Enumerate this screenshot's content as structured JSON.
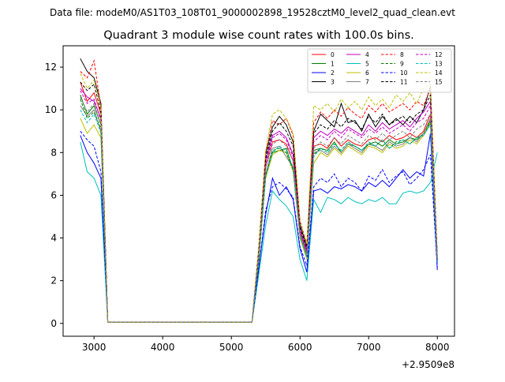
{
  "figure": {
    "suptitle": "Data file: modeM0/AS1T03_108T01_9000002898_19528cztM0_level2_quad_clean.evt"
  },
  "chart_data": {
    "type": "line",
    "title": "Quadrant 3 module wise count rates with 100.0s bins.",
    "xlabel": "",
    "ylabel": "",
    "x_offset_label": "+2.9509e8",
    "xlim": [
      2550,
      8250
    ],
    "ylim": [
      -0.6,
      13.0
    ],
    "xticks": [
      3000,
      4000,
      5000,
      6000,
      7000,
      8000
    ],
    "yticks": [
      0,
      2,
      4,
      6,
      8,
      10,
      12
    ],
    "grid": false,
    "legend": {
      "placement": "top-right",
      "columns": 4
    },
    "x": [
      2800,
      2900,
      3000,
      3100,
      3200,
      3300,
      3400,
      3500,
      3600,
      3700,
      3800,
      3900,
      4000,
      4100,
      4200,
      4300,
      4400,
      4500,
      4600,
      4700,
      4800,
      4900,
      5000,
      5100,
      5200,
      5300,
      5400,
      5500,
      5600,
      5700,
      5800,
      5900,
      6000,
      6100,
      6200,
      6300,
      6400,
      6500,
      6600,
      6700,
      6800,
      6900,
      7000,
      7100,
      7200,
      7300,
      7400,
      7500,
      7600,
      7700,
      7800,
      7900,
      8000
    ],
    "series": [
      {
        "name": "0",
        "color": "#ff0000",
        "dash": false,
        "values": [
          11.3,
          10.4,
          10.8,
          9.8,
          0.05,
          0.05,
          0.05,
          0.05,
          0.05,
          0.05,
          0.05,
          0.05,
          0.05,
          0.05,
          0.05,
          0.05,
          0.05,
          0.05,
          0.05,
          0.05,
          0.05,
          0.05,
          0.05,
          0.05,
          0.05,
          0.05,
          3.2,
          7.3,
          8.5,
          8.6,
          8.4,
          7.6,
          4.3,
          3.3,
          8.3,
          8.4,
          8.2,
          8.7,
          8.3,
          8.6,
          8.4,
          8.3,
          8.6,
          8.7,
          8.5,
          8.8,
          8.6,
          8.7,
          8.9,
          8.7,
          9.0,
          9.8,
          3.0
        ]
      },
      {
        "name": "1",
        "color": "#008000",
        "dash": false,
        "values": [
          10.7,
          9.8,
          10.2,
          9.3,
          0.05,
          0.05,
          0.05,
          0.05,
          0.05,
          0.05,
          0.05,
          0.05,
          0.05,
          0.05,
          0.05,
          0.05,
          0.05,
          0.05,
          0.05,
          0.05,
          0.05,
          0.05,
          0.05,
          0.05,
          0.05,
          0.05,
          3.0,
          6.9,
          8.0,
          8.1,
          8.2,
          7.2,
          4.1,
          3.1,
          8.1,
          8.2,
          8.1,
          8.5,
          8.0,
          8.4,
          8.3,
          8.1,
          8.4,
          8.5,
          8.3,
          8.6,
          8.4,
          8.5,
          8.7,
          8.6,
          8.9,
          9.5,
          2.9
        ]
      },
      {
        "name": "2",
        "color": "#0000ff",
        "dash": false,
        "values": [
          8.8,
          8.0,
          7.5,
          6.8,
          0.05,
          0.05,
          0.05,
          0.05,
          0.05,
          0.05,
          0.05,
          0.05,
          0.05,
          0.05,
          0.05,
          0.05,
          0.05,
          0.05,
          0.05,
          0.05,
          0.05,
          0.05,
          0.05,
          0.05,
          0.05,
          0.05,
          2.6,
          5.1,
          6.8,
          6.0,
          6.4,
          5.8,
          3.5,
          2.4,
          6.2,
          6.3,
          6.1,
          6.4,
          6.3,
          6.5,
          6.4,
          6.2,
          6.6,
          6.4,
          6.7,
          6.4,
          6.8,
          7.2,
          6.8,
          7.1,
          6.9,
          8.9,
          2.5
        ]
      },
      {
        "name": "3",
        "color": "#000000",
        "dash": false,
        "values": [
          12.4,
          11.8,
          11.5,
          10.3,
          0.05,
          0.05,
          0.05,
          0.05,
          0.05,
          0.05,
          0.05,
          0.05,
          0.05,
          0.05,
          0.05,
          0.05,
          0.05,
          0.05,
          0.05,
          0.05,
          0.05,
          0.05,
          0.05,
          0.05,
          0.05,
          0.05,
          3.5,
          7.9,
          9.2,
          9.7,
          9.3,
          8.5,
          4.6,
          3.6,
          9.0,
          9.8,
          9.5,
          9.2,
          10.3,
          9.4,
          9.5,
          9.0,
          9.8,
          9.2,
          9.7,
          9.3,
          9.6,
          9.3,
          9.7,
          9.4,
          10.0,
          11.1,
          3.1
        ]
      },
      {
        "name": "4",
        "color": "#c000c0",
        "dash": false,
        "values": [
          11.0,
          10.6,
          10.4,
          9.6,
          0.05,
          0.05,
          0.05,
          0.05,
          0.05,
          0.05,
          0.05,
          0.05,
          0.05,
          0.05,
          0.05,
          0.05,
          0.05,
          0.05,
          0.05,
          0.05,
          0.05,
          0.05,
          0.05,
          0.05,
          0.05,
          0.05,
          3.3,
          7.6,
          8.8,
          9.0,
          8.7,
          7.9,
          4.4,
          3.4,
          8.7,
          9.0,
          8.8,
          9.1,
          8.9,
          9.2,
          9.0,
          8.8,
          9.3,
          9.0,
          9.4,
          9.1,
          9.3,
          9.5,
          9.2,
          9.6,
          9.9,
          10.4,
          3.0
        ]
      },
      {
        "name": "5",
        "color": "#00bfbf",
        "dash": false,
        "values": [
          8.5,
          7.1,
          6.8,
          6.0,
          0.05,
          0.05,
          0.05,
          0.05,
          0.05,
          0.05,
          0.05,
          0.05,
          0.05,
          0.05,
          0.05,
          0.05,
          0.05,
          0.05,
          0.05,
          0.05,
          0.05,
          0.05,
          0.05,
          0.05,
          0.05,
          0.05,
          2.3,
          4.6,
          6.2,
          5.8,
          5.5,
          5.0,
          3.0,
          2.0,
          5.8,
          5.2,
          5.9,
          5.8,
          5.6,
          5.9,
          5.7,
          5.6,
          5.8,
          5.7,
          5.9,
          5.6,
          5.6,
          6.1,
          6.2,
          6.1,
          6.2,
          6.6,
          8.0
        ]
      },
      {
        "name": "6",
        "color": "#bfbf00",
        "dash": false,
        "values": [
          9.6,
          8.9,
          9.3,
          8.7,
          0.05,
          0.05,
          0.05,
          0.05,
          0.05,
          0.05,
          0.05,
          0.05,
          0.05,
          0.05,
          0.05,
          0.05,
          0.05,
          0.05,
          0.05,
          0.05,
          0.05,
          0.05,
          0.05,
          0.05,
          0.05,
          0.05,
          3.0,
          6.8,
          7.9,
          8.1,
          8.0,
          7.1,
          4.0,
          3.0,
          7.5,
          8.0,
          7.8,
          8.2,
          7.9,
          8.3,
          8.1,
          7.9,
          8.3,
          8.2,
          8.0,
          8.4,
          8.2,
          8.3,
          8.6,
          8.4,
          8.8,
          9.4,
          2.9
        ]
      },
      {
        "name": "7",
        "color": "#808080",
        "dash": false,
        "values": [
          10.2,
          9.7,
          10.0,
          9.0,
          0.05,
          0.05,
          0.05,
          0.05,
          0.05,
          0.05,
          0.05,
          0.05,
          0.05,
          0.05,
          0.05,
          0.05,
          0.05,
          0.05,
          0.05,
          0.05,
          0.05,
          0.05,
          0.05,
          0.05,
          0.05,
          0.05,
          3.1,
          7.0,
          8.2,
          8.3,
          7.8,
          7.3,
          4.2,
          3.2,
          8.0,
          8.1,
          7.9,
          8.3,
          8.0,
          8.4,
          8.2,
          8.0,
          8.4,
          8.3,
          8.1,
          8.5,
          8.3,
          8.4,
          8.7,
          8.5,
          8.9,
          9.6,
          2.9
        ]
      },
      {
        "name": "8",
        "color": "#ff0000",
        "dash": true,
        "values": [
          11.8,
          11.5,
          12.3,
          10.1,
          0.05,
          0.05,
          0.05,
          0.05,
          0.05,
          0.05,
          0.05,
          0.05,
          0.05,
          0.05,
          0.05,
          0.05,
          0.05,
          0.05,
          0.05,
          0.05,
          0.05,
          0.05,
          0.05,
          0.05,
          0.05,
          0.05,
          3.6,
          8.0,
          9.5,
          9.3,
          9.6,
          8.8,
          4.8,
          3.7,
          9.4,
          9.9,
          9.6,
          10.0,
          9.7,
          10.1,
          9.8,
          9.6,
          10.2,
          9.9,
          10.3,
          9.9,
          10.1,
          10.3,
          10.0,
          10.4,
          10.2,
          11.0,
          3.2
        ]
      },
      {
        "name": "9",
        "color": "#008000",
        "dash": true,
        "values": [
          10.5,
          9.6,
          9.9,
          9.1,
          0.05,
          0.05,
          0.05,
          0.05,
          0.05,
          0.05,
          0.05,
          0.05,
          0.05,
          0.05,
          0.05,
          0.05,
          0.05,
          0.05,
          0.05,
          0.05,
          0.05,
          0.05,
          0.05,
          0.05,
          0.05,
          0.05,
          3.0,
          6.9,
          8.1,
          8.2,
          8.0,
          7.2,
          4.1,
          3.1,
          7.9,
          8.2,
          8.0,
          8.4,
          8.1,
          8.5,
          8.3,
          8.1,
          8.4,
          8.3,
          8.6,
          8.2,
          8.5,
          8.6,
          8.4,
          8.7,
          8.8,
          9.4,
          2.9
        ]
      },
      {
        "name": "10",
        "color": "#0000ff",
        "dash": true,
        "values": [
          9.0,
          8.6,
          8.3,
          7.1,
          0.05,
          0.05,
          0.05,
          0.05,
          0.05,
          0.05,
          0.05,
          0.05,
          0.05,
          0.05,
          0.05,
          0.05,
          0.05,
          0.05,
          0.05,
          0.05,
          0.05,
          0.05,
          0.05,
          0.05,
          0.05,
          0.05,
          2.6,
          5.3,
          6.4,
          6.6,
          6.3,
          5.9,
          3.6,
          2.7,
          6.4,
          6.8,
          6.6,
          7.0,
          6.4,
          6.8,
          6.6,
          6.2,
          6.9,
          6.7,
          7.2,
          6.6,
          6.9,
          7.1,
          6.5,
          6.8,
          7.2,
          7.9,
          2.6
        ]
      },
      {
        "name": "11",
        "color": "#000000",
        "dash": true,
        "values": [
          11.3,
          10.9,
          11.2,
          9.9,
          0.05,
          0.05,
          0.05,
          0.05,
          0.05,
          0.05,
          0.05,
          0.05,
          0.05,
          0.05,
          0.05,
          0.05,
          0.05,
          0.05,
          0.05,
          0.05,
          0.05,
          0.05,
          0.05,
          0.05,
          0.05,
          0.05,
          3.4,
          7.7,
          9.0,
          9.4,
          9.0,
          8.3,
          4.5,
          3.5,
          8.9,
          9.3,
          9.1,
          9.5,
          9.2,
          9.6,
          9.4,
          9.1,
          9.7,
          9.4,
          9.8,
          9.3,
          9.5,
          9.7,
          9.4,
          9.8,
          10.0,
          10.7,
          3.0
        ]
      },
      {
        "name": "12",
        "color": "#c000c0",
        "dash": true,
        "values": [
          10.9,
          10.3,
          10.5,
          9.5,
          0.05,
          0.05,
          0.05,
          0.05,
          0.05,
          0.05,
          0.05,
          0.05,
          0.05,
          0.05,
          0.05,
          0.05,
          0.05,
          0.05,
          0.05,
          0.05,
          0.05,
          0.05,
          0.05,
          0.05,
          0.05,
          0.05,
          3.2,
          7.4,
          8.7,
          8.9,
          8.6,
          7.8,
          4.3,
          3.3,
          8.5,
          8.8,
          8.6,
          9.0,
          8.7,
          9.1,
          8.9,
          8.7,
          9.1,
          8.9,
          9.2,
          8.9,
          9.1,
          9.3,
          9.0,
          9.4,
          9.6,
          10.2,
          2.9
        ]
      },
      {
        "name": "13",
        "color": "#00bfbf",
        "dash": true,
        "values": [
          10.0,
          9.4,
          9.8,
          8.9,
          0.05,
          0.05,
          0.05,
          0.05,
          0.05,
          0.05,
          0.05,
          0.05,
          0.05,
          0.05,
          0.05,
          0.05,
          0.05,
          0.05,
          0.05,
          0.05,
          0.05,
          0.05,
          0.05,
          0.05,
          0.05,
          0.05,
          3.1,
          6.9,
          8.0,
          8.3,
          8.1,
          7.3,
          4.1,
          3.1,
          7.8,
          8.2,
          8.0,
          8.4,
          8.1,
          8.5,
          8.3,
          8.1,
          8.5,
          8.3,
          8.6,
          8.2,
          8.4,
          8.6,
          8.4,
          8.7,
          8.8,
          9.3,
          2.8
        ]
      },
      {
        "name": "14",
        "color": "#bfbf00",
        "dash": true,
        "values": [
          11.7,
          11.0,
          11.4,
          10.1,
          0.05,
          0.05,
          0.05,
          0.05,
          0.05,
          0.05,
          0.05,
          0.05,
          0.05,
          0.05,
          0.05,
          0.05,
          0.05,
          0.05,
          0.05,
          0.05,
          0.05,
          0.05,
          0.05,
          0.05,
          0.05,
          0.05,
          3.6,
          8.1,
          9.8,
          10.0,
          9.6,
          8.9,
          4.8,
          3.7,
          10.2,
          10.0,
          10.3,
          9.9,
          10.5,
          10.1,
          10.4,
          10.0,
          10.6,
          10.2,
          10.5,
          10.1,
          10.7,
          10.4,
          10.8,
          10.3,
          11.0,
          11.2,
          3.1
        ]
      },
      {
        "name": "15",
        "color": "#808080",
        "dash": true,
        "values": [
          10.6,
          9.9,
          10.3,
          9.3,
          0.05,
          0.05,
          0.05,
          0.05,
          0.05,
          0.05,
          0.05,
          0.05,
          0.05,
          0.05,
          0.05,
          0.05,
          0.05,
          0.05,
          0.05,
          0.05,
          0.05,
          0.05,
          0.05,
          0.05,
          0.05,
          0.05,
          3.2,
          7.3,
          8.4,
          8.6,
          8.3,
          7.6,
          4.2,
          3.2,
          8.2,
          8.5,
          8.3,
          8.7,
          8.4,
          8.8,
          8.6,
          8.4,
          8.8,
          8.6,
          8.9,
          8.6,
          8.8,
          9.0,
          8.7,
          9.1,
          9.3,
          9.8,
          2.9
        ]
      }
    ]
  }
}
